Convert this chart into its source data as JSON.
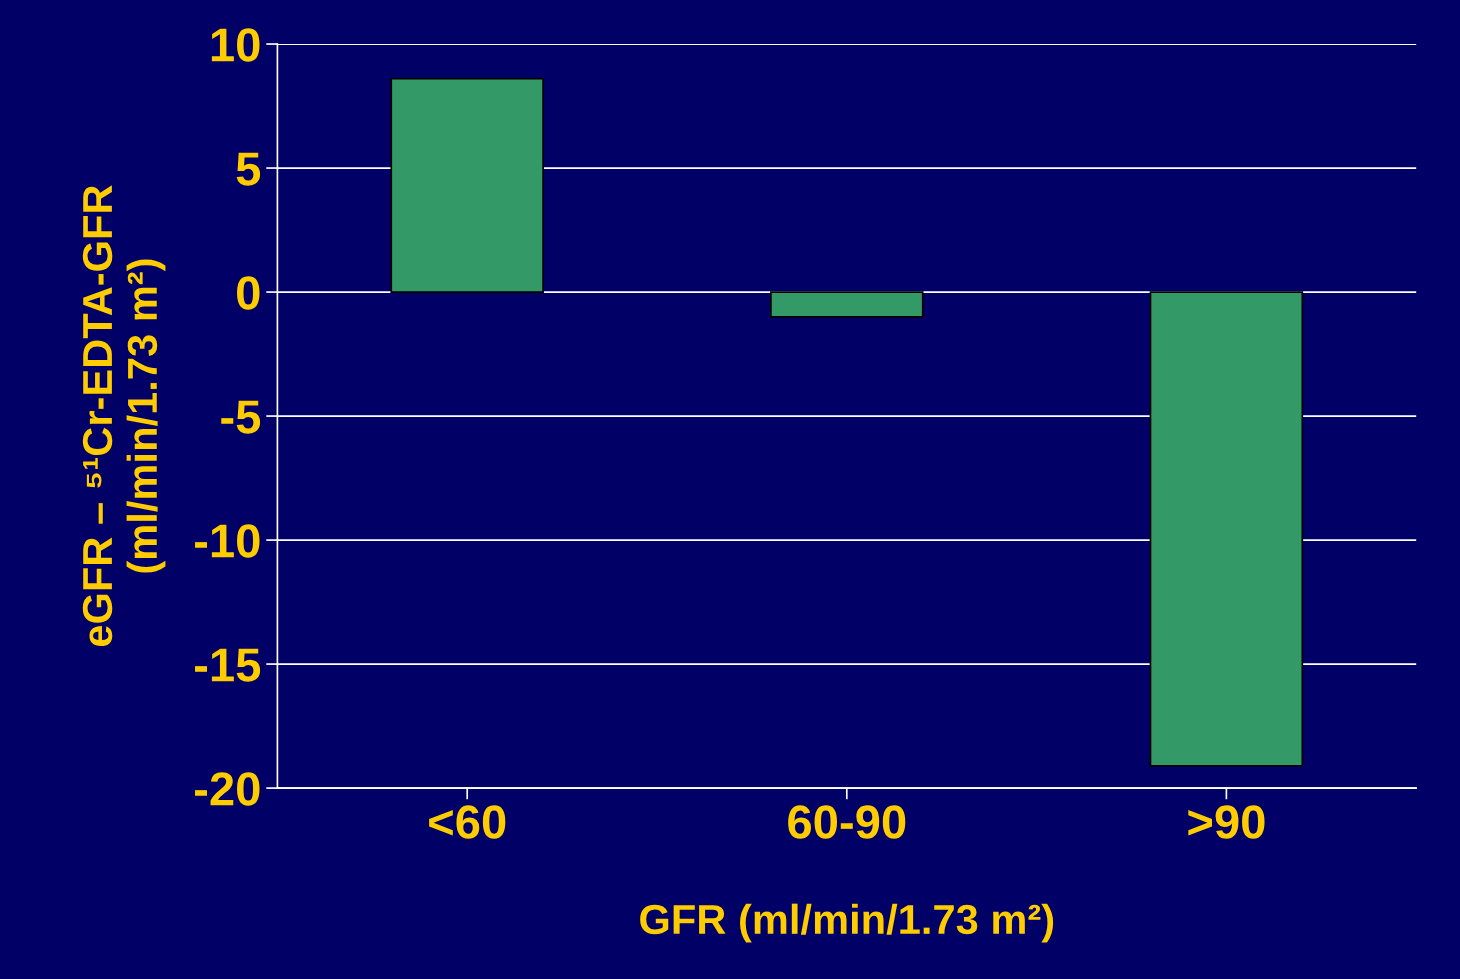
{
  "chart_data": {
    "type": "bar",
    "xlabel": "GFR (ml/min/1.73 m²)",
    "ylabel": "eGFR – ⁵¹Cr-EDTA-GFR\n(ml/min/1.73 m²)",
    "categories": [
      "<60",
      "60-90",
      ">90"
    ],
    "values": [
      8.6,
      -1.0,
      -19.1
    ],
    "color": "#339966",
    "ylim": [
      -20,
      10
    ],
    "yticks": [
      10,
      5,
      0,
      -5,
      -10,
      -15,
      -20
    ],
    "grid": "y"
  }
}
